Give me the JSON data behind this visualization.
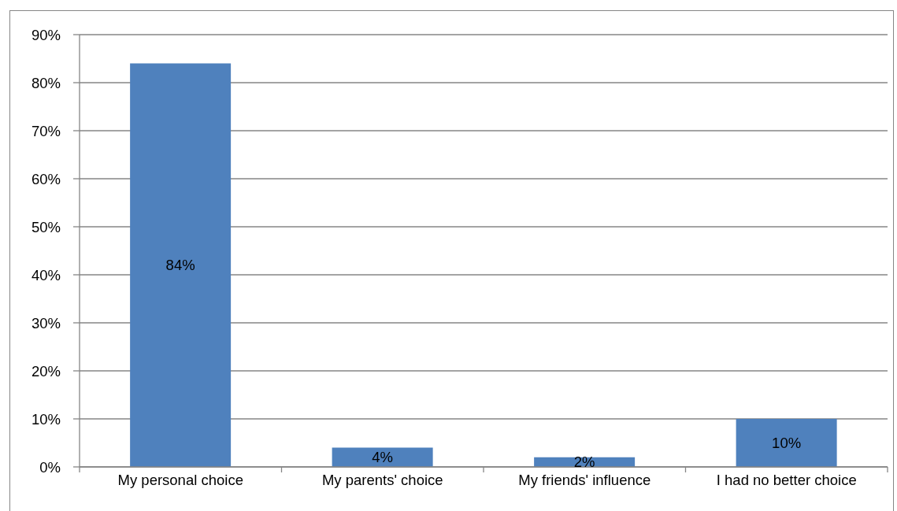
{
  "chart_data": {
    "type": "bar",
    "categories": [
      "My personal choice",
      "My parents' choice",
      "My friends' influence",
      "I had no better choice"
    ],
    "values": [
      84,
      4,
      2,
      10
    ],
    "color": "#4f81bd",
    "value_labels": [
      "84%",
      "4%",
      "2%",
      "10%"
    ],
    "ylim": [
      0,
      90
    ],
    "yticks": [
      {
        "value": 0,
        "label": "0%"
      },
      {
        "value": 10,
        "label": "10%"
      },
      {
        "value": 20,
        "label": "20%"
      },
      {
        "value": 30,
        "label": "30%"
      },
      {
        "value": 40,
        "label": "40%"
      },
      {
        "value": 50,
        "label": "50%"
      },
      {
        "value": 60,
        "label": "60%"
      },
      {
        "value": 70,
        "label": "70%"
      },
      {
        "value": 80,
        "label": "80%"
      },
      {
        "value": 90,
        "label": "90%"
      }
    ],
    "grid": "y"
  }
}
